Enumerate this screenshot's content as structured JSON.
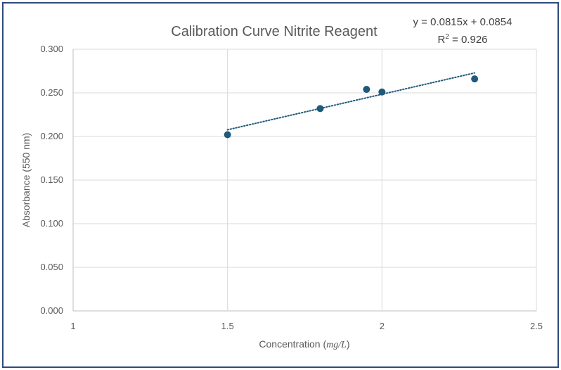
{
  "chart_data": {
    "type": "scatter",
    "title": "Calibration Curve Nitrite Reagent",
    "xlabel_prefix": "Concentration (",
    "xlabel_unit": "mg/L",
    "xlabel_suffix": ")",
    "ylabel": "Absorbance (550 nm)",
    "xlim": [
      1,
      2.5
    ],
    "ylim": [
      0,
      0.3
    ],
    "xticks": [
      1,
      1.5,
      2,
      2.5
    ],
    "xtick_labels": [
      "1",
      "1.5",
      "2",
      "2.5"
    ],
    "yticks": [
      0,
      0.05,
      0.1,
      0.15,
      0.2,
      0.25,
      0.3
    ],
    "ytick_labels": [
      "0.000",
      "0.050",
      "0.100",
      "0.150",
      "0.200",
      "0.250",
      "0.300"
    ],
    "grid": true,
    "points": [
      {
        "x": 1.5,
        "y": 0.202
      },
      {
        "x": 1.8,
        "y": 0.232
      },
      {
        "x": 1.95,
        "y": 0.254
      },
      {
        "x": 2.0,
        "y": 0.251
      },
      {
        "x": 2.3,
        "y": 0.266
      }
    ],
    "trendline": {
      "type": "linear",
      "slope": 0.0815,
      "intercept": 0.0854,
      "x_range": [
        1.5,
        2.3
      ],
      "equation": "y = 0.0815x + 0.0854",
      "r2_prefix": "R",
      "r2_sup": "2",
      "r2_value": " = 0.926"
    },
    "colors": {
      "marker": "#1f5a7a",
      "trendline": "#1f5a7a",
      "frame": "#2f4a7a"
    }
  }
}
